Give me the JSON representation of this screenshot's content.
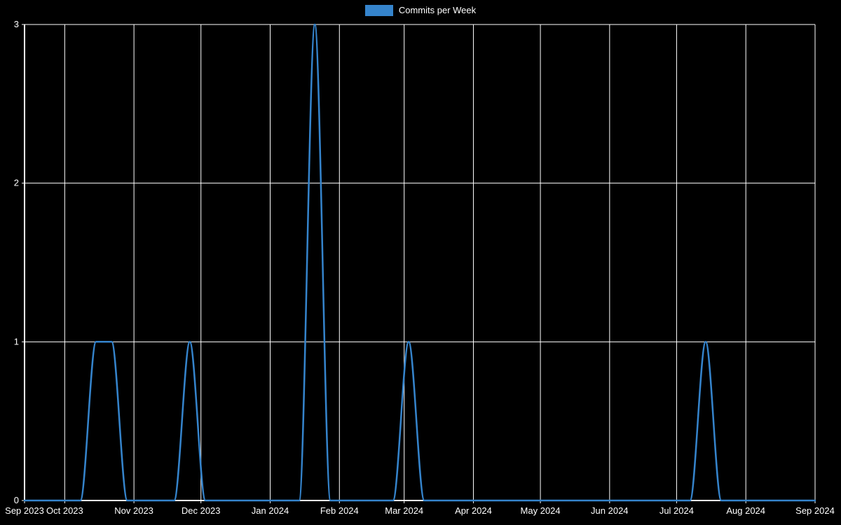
{
  "legend": {
    "label": "Commits per Week",
    "swatch_color": "#3584cc"
  },
  "colors": {
    "background": "#000000",
    "grid": "#ffffff",
    "axis": "#ffffff",
    "text": "#ffffff",
    "line": "#3584cc"
  },
  "chart_data": {
    "type": "line",
    "title": "Commits per Week",
    "legend_position": "top-center",
    "grid": true,
    "grid_color": "#ffffff",
    "x_axis": {
      "start": "2023-09-13",
      "end": "2024-09-01",
      "ticks": [
        {
          "date": "2023-09-13",
          "label": "Sep 2023"
        },
        {
          "date": "2023-10-01",
          "label": "Oct 2023"
        },
        {
          "date": "2023-11-01",
          "label": "Nov 2023"
        },
        {
          "date": "2023-12-01",
          "label": "Dec 2023"
        },
        {
          "date": "2024-01-01",
          "label": "Jan 2024"
        },
        {
          "date": "2024-02-01",
          "label": "Feb 2024"
        },
        {
          "date": "2024-03-01",
          "label": "Mar 2024"
        },
        {
          "date": "2024-04-01",
          "label": "Apr 2024"
        },
        {
          "date": "2024-05-01",
          "label": "May 2024"
        },
        {
          "date": "2024-06-01",
          "label": "Jun 2024"
        },
        {
          "date": "2024-07-01",
          "label": "Jul 2024"
        },
        {
          "date": "2024-08-01",
          "label": "Aug 2024"
        },
        {
          "date": "2024-09-01",
          "label": "Sep 2024"
        }
      ]
    },
    "y_axis": {
      "range": [
        0,
        3
      ],
      "ticks": [
        0,
        1,
        2,
        3
      ]
    },
    "series": [
      {
        "name": "Commits per Week",
        "color": "#3584cc",
        "week_start": "2023-09-17",
        "week_end": "2024-09-01",
        "interval_days": 7,
        "default_value": 0,
        "values_by_week": {
          "2023-10-15": 1,
          "2023-10-22": 1,
          "2023-11-26": 1,
          "2024-01-21": 3,
          "2024-03-03": 1,
          "2024-07-14": 1
        }
      }
    ]
  }
}
